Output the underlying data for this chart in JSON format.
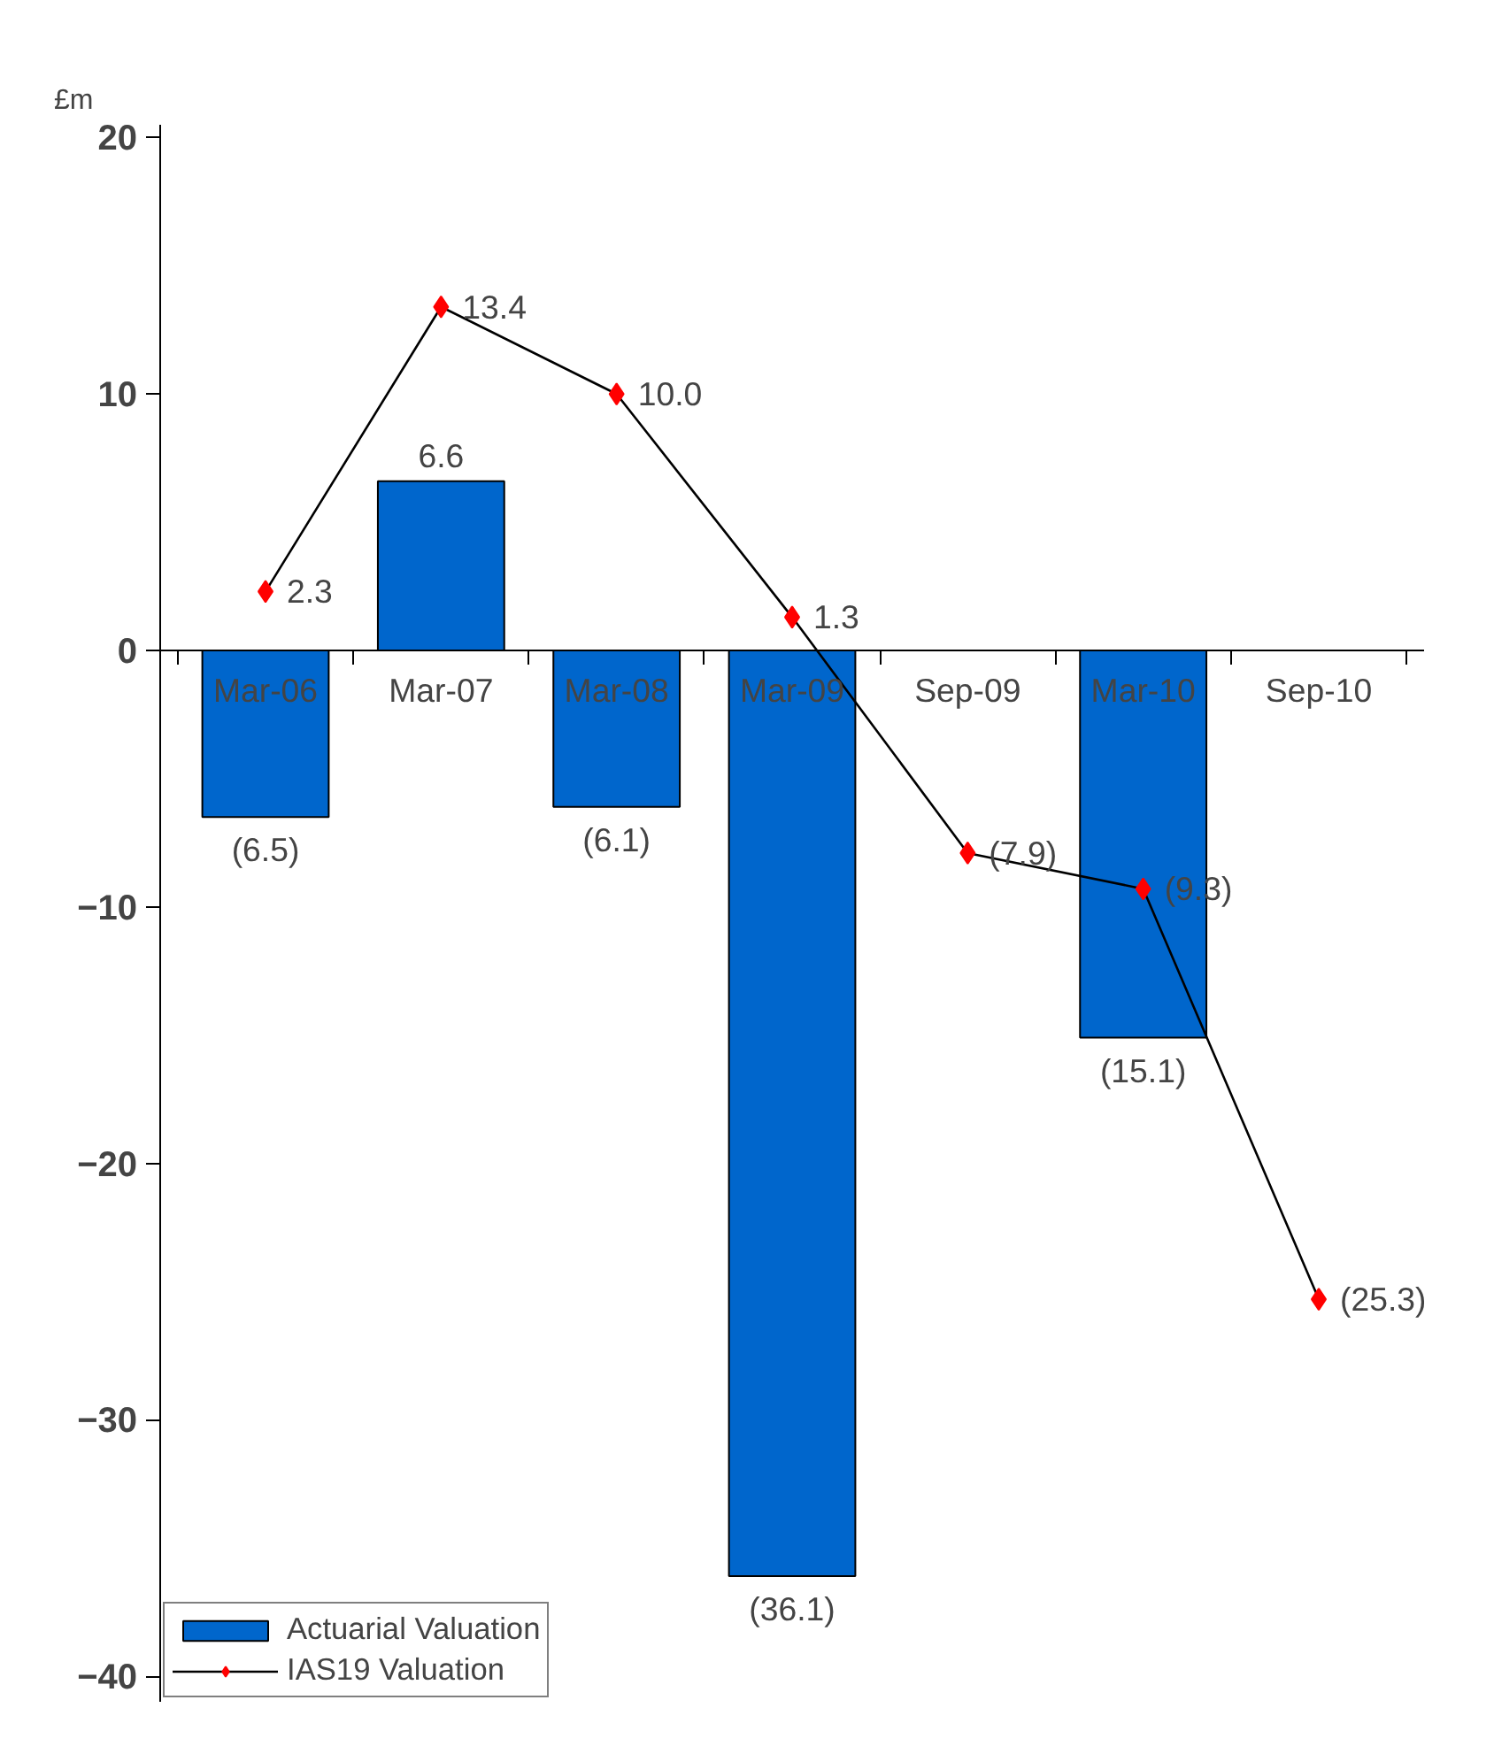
{
  "chart_data": {
    "type": "bar",
    "ylabel": "£m",
    "categories": [
      "Mar-06",
      "Mar-07",
      "Mar-08",
      "Mar-09",
      "Sep-09",
      "Mar-10",
      "Sep-10"
    ],
    "series": [
      {
        "name": "Actuarial Valuation",
        "color": "#0066cc",
        "values": [
          -6.5,
          6.6,
          -6.1,
          -36.1,
          null,
          -15.1,
          null
        ],
        "value_labels": [
          "(6.5)",
          "6.6",
          "(6.1)",
          "(36.1)",
          null,
          "(15.1)",
          null
        ]
      },
      {
        "name": "IAS19 Valuation",
        "type": "line",
        "color": "#000000",
        "colors": [
          "#ff0000",
          "#ff0000",
          "#ff0000",
          "#ff0000",
          "#ff0000",
          "#ff0000",
          "#ff0000"
        ],
        "marker": "diamond",
        "values": [
          2.3,
          13.4,
          10.0,
          1.3,
          -7.9,
          -9.3,
          -25.3
        ],
        "value_labels": [
          "2.3",
          "13.4",
          "10.0",
          "1.3",
          "(7.9)",
          "(9.3)",
          "(25.3)"
        ]
      }
    ],
    "ylim": [
      -41,
      20.5
    ],
    "yticks": [
      -40,
      -30,
      -20,
      -10,
      0,
      10,
      20
    ],
    "grid": false,
    "legend": "bottom left"
  }
}
